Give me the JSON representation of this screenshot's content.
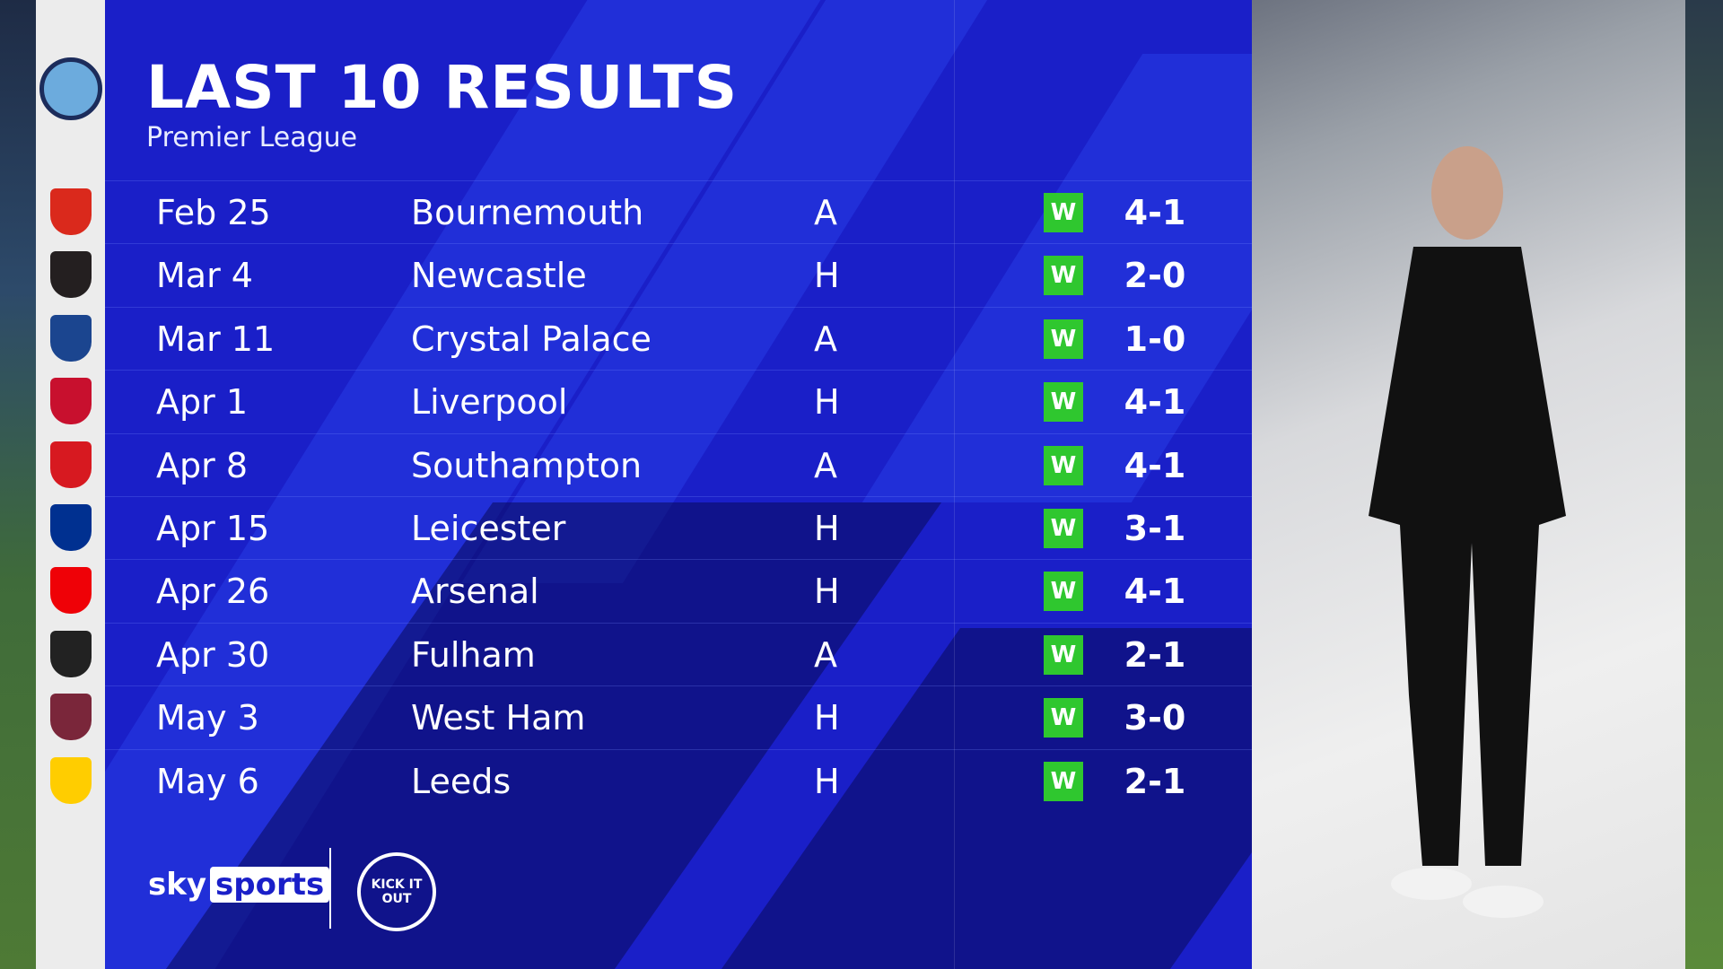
{
  "header": {
    "title": "LAST 10 RESULTS",
    "subtitle": "Premier League"
  },
  "colors": {
    "panel": "#1a1fc8",
    "win": "#2fc72f"
  },
  "results": [
    {
      "date": "Feb 25",
      "opponent": "Bournemouth",
      "venue": "A",
      "result": "W",
      "score": "4-1",
      "crest": "#da291c"
    },
    {
      "date": "Mar 4",
      "opponent": "Newcastle",
      "venue": "H",
      "result": "W",
      "score": "2-0",
      "crest": "#241f20"
    },
    {
      "date": "Mar 11",
      "opponent": "Crystal Palace",
      "venue": "A",
      "result": "W",
      "score": "1-0",
      "crest": "#1b458f"
    },
    {
      "date": "Apr 1",
      "opponent": "Liverpool",
      "venue": "H",
      "result": "W",
      "score": "4-1",
      "crest": "#c8102e"
    },
    {
      "date": "Apr 8",
      "opponent": "Southampton",
      "venue": "A",
      "result": "W",
      "score": "4-1",
      "crest": "#d71920"
    },
    {
      "date": "Apr 15",
      "opponent": "Leicester",
      "venue": "H",
      "result": "W",
      "score": "3-1",
      "crest": "#003090"
    },
    {
      "date": "Apr 26",
      "opponent": "Arsenal",
      "venue": "H",
      "result": "W",
      "score": "4-1",
      "crest": "#ef0107"
    },
    {
      "date": "Apr 30",
      "opponent": "Fulham",
      "venue": "A",
      "result": "W",
      "score": "2-1",
      "crest": "#222222"
    },
    {
      "date": "May 3",
      "opponent": "West Ham",
      "venue": "H",
      "result": "W",
      "score": "3-0",
      "crest": "#7a263a"
    },
    {
      "date": "May 6",
      "opponent": "Leeds",
      "venue": "H",
      "result": "W",
      "score": "2-1",
      "crest": "#ffcd00"
    }
  ],
  "footer": {
    "brand_sky": "sky",
    "brand_sports": "sports",
    "kick_it_out": "KICK IT OUT"
  }
}
